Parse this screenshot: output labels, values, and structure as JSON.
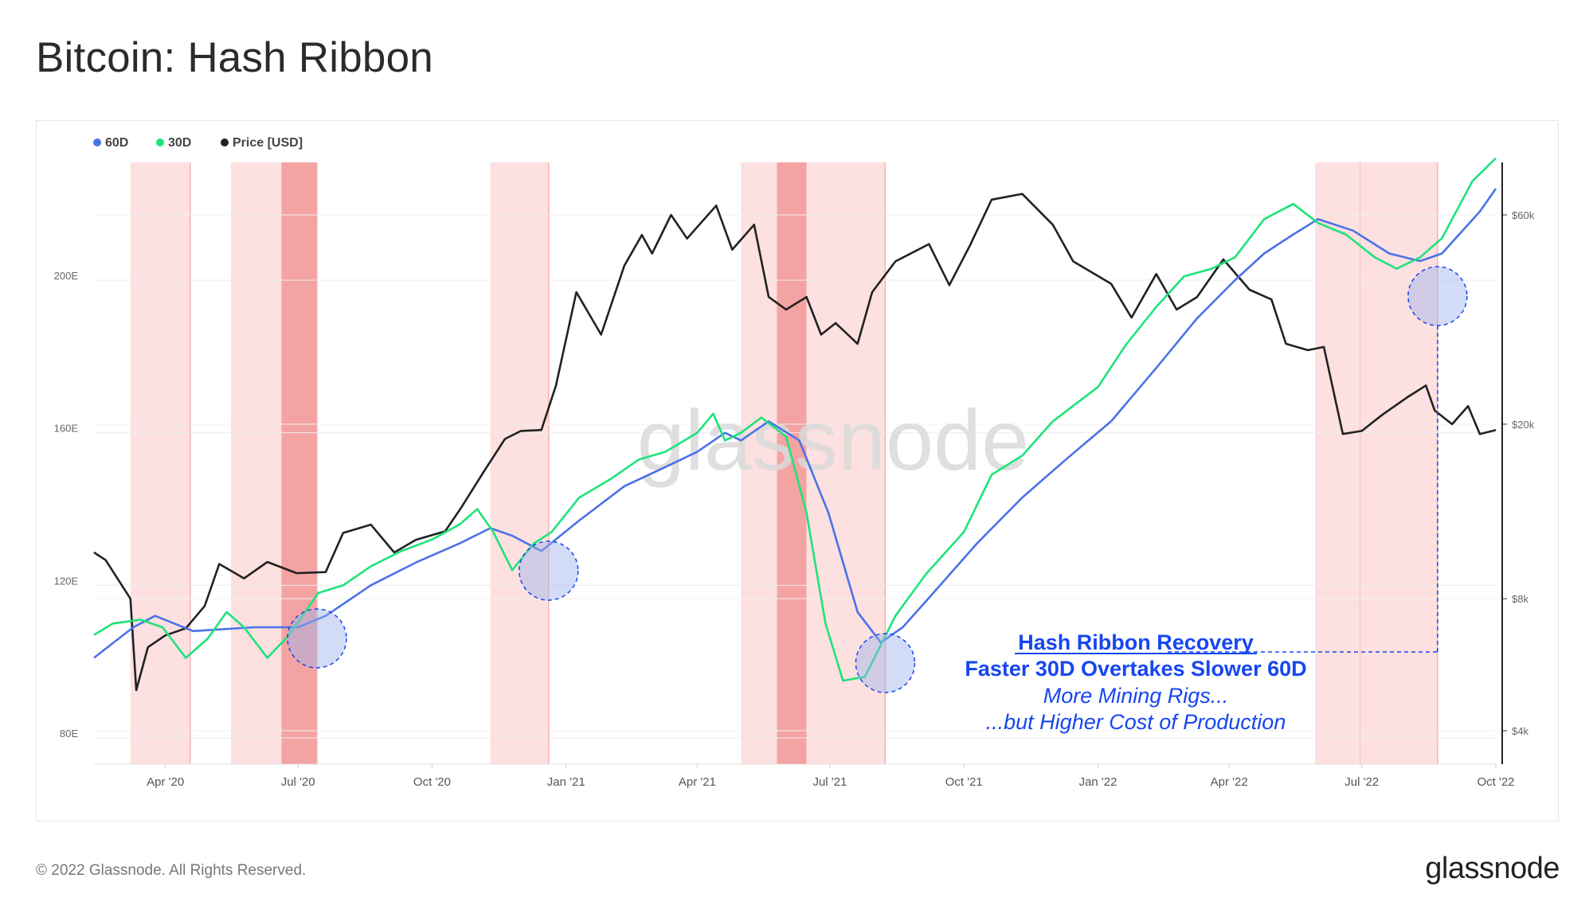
{
  "page": {
    "title": "Bitcoin: Hash Ribbon",
    "copyright": "© 2022 Glassnode. All Rights Reserved.",
    "brand": "glassnode"
  },
  "chart_data": {
    "type": "line",
    "watermark": "glassnode",
    "legend": [
      {
        "name": "60D",
        "color": "#4a72e8"
      },
      {
        "name": "30D",
        "color": "#1ee37a"
      },
      {
        "name": "Price [USD]",
        "color": "#222222"
      }
    ],
    "x_ticks": [
      "Apr '20",
      "Jul '20",
      "Oct '20",
      "Jan '21",
      "Apr '21",
      "Jul '21",
      "Oct '21",
      "Jan '22",
      "Apr '22",
      "Jul '22",
      "Oct '22"
    ],
    "x_range": [
      "2020-02-12",
      "2022-10-01"
    ],
    "y_left": {
      "ticks": [
        "80E",
        "120E",
        "160E",
        "200E"
      ],
      "range": [
        80,
        240
      ],
      "unit": "E"
    },
    "y_right": {
      "ticks": [
        "$4k",
        "$8k",
        "$20k",
        "$60k"
      ],
      "scale": "log",
      "range": [
        4000,
        100000
      ]
    },
    "capitulation_bands": [
      {
        "start": "2020-03-08",
        "end": "2020-04-18",
        "shade": "light"
      },
      {
        "start": "2020-05-16",
        "end": "2020-06-20",
        "shade": "light"
      },
      {
        "start": "2020-06-20",
        "end": "2020-07-14",
        "shade": "dark"
      },
      {
        "start": "2020-11-10",
        "end": "2020-12-20",
        "shade": "light"
      },
      {
        "start": "2021-05-01",
        "end": "2021-05-26",
        "shade": "light"
      },
      {
        "start": "2021-05-26",
        "end": "2021-06-15",
        "shade": "dark"
      },
      {
        "start": "2021-06-15",
        "end": "2021-08-08",
        "shade": "light"
      },
      {
        "start": "2022-05-30",
        "end": "2022-06-30",
        "shade": "light"
      },
      {
        "start": "2022-06-30",
        "end": "2022-08-22",
        "shade": "light"
      }
    ],
    "series": [
      {
        "name": "30D",
        "axis": "left",
        "points": [
          [
            "2020-02-12",
            107
          ],
          [
            "2020-02-25",
            110
          ],
          [
            "2020-03-15",
            111
          ],
          [
            "2020-03-30",
            109
          ],
          [
            "2020-04-15",
            101
          ],
          [
            "2020-04-30",
            106
          ],
          [
            "2020-05-13",
            113
          ],
          [
            "2020-05-25",
            109
          ],
          [
            "2020-06-10",
            101
          ],
          [
            "2020-06-25",
            107
          ],
          [
            "2020-07-15",
            118
          ],
          [
            "2020-08-01",
            120
          ],
          [
            "2020-08-20",
            125
          ],
          [
            "2020-09-10",
            129
          ],
          [
            "2020-10-01",
            132
          ],
          [
            "2020-10-20",
            136
          ],
          [
            "2020-11-01",
            140
          ],
          [
            "2020-11-12",
            134
          ],
          [
            "2020-11-25",
            124
          ],
          [
            "2020-12-10",
            131
          ],
          [
            "2020-12-22",
            134
          ],
          [
            "2021-01-10",
            143
          ],
          [
            "2021-02-01",
            148
          ],
          [
            "2021-02-20",
            153
          ],
          [
            "2021-03-10",
            155
          ],
          [
            "2021-04-01",
            160
          ],
          [
            "2021-04-12",
            165
          ],
          [
            "2021-04-20",
            158
          ],
          [
            "2021-05-01",
            160
          ],
          [
            "2021-05-15",
            164
          ],
          [
            "2021-06-01",
            159
          ],
          [
            "2021-06-15",
            139
          ],
          [
            "2021-06-28",
            110
          ],
          [
            "2021-07-10",
            95
          ],
          [
            "2021-07-25",
            96
          ],
          [
            "2021-08-15",
            112
          ],
          [
            "2021-09-05",
            123
          ],
          [
            "2021-10-01",
            134
          ],
          [
            "2021-10-20",
            149
          ],
          [
            "2021-11-10",
            154
          ],
          [
            "2021-12-01",
            163
          ],
          [
            "2022-01-01",
            172
          ],
          [
            "2022-01-20",
            183
          ],
          [
            "2022-02-10",
            193
          ],
          [
            "2022-03-01",
            201
          ],
          [
            "2022-03-20",
            203
          ],
          [
            "2022-04-05",
            206
          ],
          [
            "2022-04-25",
            216
          ],
          [
            "2022-05-15",
            220
          ],
          [
            "2022-06-01",
            215
          ],
          [
            "2022-06-20",
            212
          ],
          [
            "2022-07-10",
            206
          ],
          [
            "2022-07-25",
            203
          ],
          [
            "2022-08-10",
            206
          ],
          [
            "2022-08-25",
            211
          ],
          [
            "2022-09-15",
            226
          ],
          [
            "2022-10-01",
            232
          ]
        ]
      },
      {
        "name": "60D",
        "axis": "left",
        "points": [
          [
            "2020-02-12",
            101
          ],
          [
            "2020-03-10",
            109
          ],
          [
            "2020-03-25",
            112
          ],
          [
            "2020-04-20",
            108
          ],
          [
            "2020-06-01",
            109
          ],
          [
            "2020-07-01",
            109
          ],
          [
            "2020-07-20",
            112
          ],
          [
            "2020-08-20",
            120
          ],
          [
            "2020-09-20",
            126
          ],
          [
            "2020-10-20",
            131
          ],
          [
            "2020-11-10",
            135
          ],
          [
            "2020-11-25",
            133
          ],
          [
            "2020-12-15",
            129
          ],
          [
            "2021-01-10",
            137
          ],
          [
            "2021-02-10",
            146
          ],
          [
            "2021-03-10",
            151
          ],
          [
            "2021-04-01",
            155
          ],
          [
            "2021-04-20",
            160
          ],
          [
            "2021-05-01",
            158
          ],
          [
            "2021-05-20",
            163
          ],
          [
            "2021-06-10",
            158
          ],
          [
            "2021-06-30",
            139
          ],
          [
            "2021-07-20",
            113
          ],
          [
            "2021-08-05",
            105
          ],
          [
            "2021-08-20",
            109
          ],
          [
            "2021-09-10",
            118
          ],
          [
            "2021-10-10",
            131
          ],
          [
            "2021-11-10",
            143
          ],
          [
            "2021-12-10",
            153
          ],
          [
            "2022-01-10",
            163
          ],
          [
            "2022-02-10",
            177
          ],
          [
            "2022-03-10",
            190
          ],
          [
            "2022-04-05",
            200
          ],
          [
            "2022-04-25",
            207
          ],
          [
            "2022-05-15",
            212
          ],
          [
            "2022-06-01",
            216
          ],
          [
            "2022-06-25",
            213
          ],
          [
            "2022-07-20",
            207
          ],
          [
            "2022-08-10",
            205
          ],
          [
            "2022-08-25",
            207
          ],
          [
            "2022-09-20",
            218
          ],
          [
            "2022-10-01",
            224
          ]
        ]
      },
      {
        "name": "Price [USD]",
        "axis": "right",
        "points": [
          [
            "2020-02-12",
            10200
          ],
          [
            "2020-02-20",
            9800
          ],
          [
            "2020-03-01",
            8700
          ],
          [
            "2020-03-08",
            8000
          ],
          [
            "2020-03-12",
            4950
          ],
          [
            "2020-03-20",
            6200
          ],
          [
            "2020-04-01",
            6600
          ],
          [
            "2020-04-15",
            6850
          ],
          [
            "2020-04-28",
            7700
          ],
          [
            "2020-05-08",
            9600
          ],
          [
            "2020-05-25",
            8900
          ],
          [
            "2020-06-10",
            9700
          ],
          [
            "2020-06-30",
            9150
          ],
          [
            "2020-07-20",
            9200
          ],
          [
            "2020-08-01",
            11300
          ],
          [
            "2020-08-20",
            11800
          ],
          [
            "2020-09-05",
            10200
          ],
          [
            "2020-09-20",
            10900
          ],
          [
            "2020-10-10",
            11400
          ],
          [
            "2020-10-21",
            12900
          ],
          [
            "2020-11-05",
            15500
          ],
          [
            "2020-11-20",
            18500
          ],
          [
            "2020-12-01",
            19300
          ],
          [
            "2020-12-15",
            19400
          ],
          [
            "2020-12-25",
            24500
          ],
          [
            "2021-01-08",
            40000
          ],
          [
            "2021-01-25",
            32000
          ],
          [
            "2021-02-10",
            46000
          ],
          [
            "2021-02-22",
            54000
          ],
          [
            "2021-03-01",
            49000
          ],
          [
            "2021-03-14",
            60000
          ],
          [
            "2021-03-25",
            53000
          ],
          [
            "2021-04-14",
            63000
          ],
          [
            "2021-04-25",
            50000
          ],
          [
            "2021-05-10",
            57000
          ],
          [
            "2021-05-20",
            39000
          ],
          [
            "2021-06-01",
            36500
          ],
          [
            "2021-06-15",
            39000
          ],
          [
            "2021-06-25",
            32000
          ],
          [
            "2021-07-05",
            34000
          ],
          [
            "2021-07-20",
            30500
          ],
          [
            "2021-07-30",
            40000
          ],
          [
            "2021-08-15",
            47000
          ],
          [
            "2021-09-07",
            51500
          ],
          [
            "2021-09-21",
            41500
          ],
          [
            "2021-10-05",
            51000
          ],
          [
            "2021-10-20",
            65000
          ],
          [
            "2021-11-10",
            67000
          ],
          [
            "2021-12-01",
            57000
          ],
          [
            "2021-12-15",
            47000
          ],
          [
            "2022-01-10",
            41800
          ],
          [
            "2022-01-24",
            35000
          ],
          [
            "2022-02-10",
            44000
          ],
          [
            "2022-02-24",
            36500
          ],
          [
            "2022-03-10",
            39000
          ],
          [
            "2022-03-28",
            47500
          ],
          [
            "2022-04-15",
            40500
          ],
          [
            "2022-04-30",
            38500
          ],
          [
            "2022-05-10",
            30500
          ],
          [
            "2022-05-25",
            29500
          ],
          [
            "2022-06-05",
            30000
          ],
          [
            "2022-06-18",
            19000
          ],
          [
            "2022-07-01",
            19300
          ],
          [
            "2022-07-15",
            21000
          ],
          [
            "2022-08-01",
            23000
          ],
          [
            "2022-08-14",
            24500
          ],
          [
            "2022-08-20",
            21500
          ],
          [
            "2022-09-01",
            20000
          ],
          [
            "2022-09-12",
            22000
          ],
          [
            "2022-09-20",
            19000
          ],
          [
            "2022-10-01",
            19400
          ]
        ]
      }
    ],
    "highlight_circles": [
      "2020-07-14",
      "2020-12-20",
      "2021-08-08",
      "2022-08-22"
    ],
    "annotation": {
      "title": "Hash Ribbon Recovery",
      "line2": "Faster 30D Overtakes Slower 60D",
      "line3": "More Mining Rigs...",
      "line4": "...but Higher Cost of Production"
    }
  }
}
